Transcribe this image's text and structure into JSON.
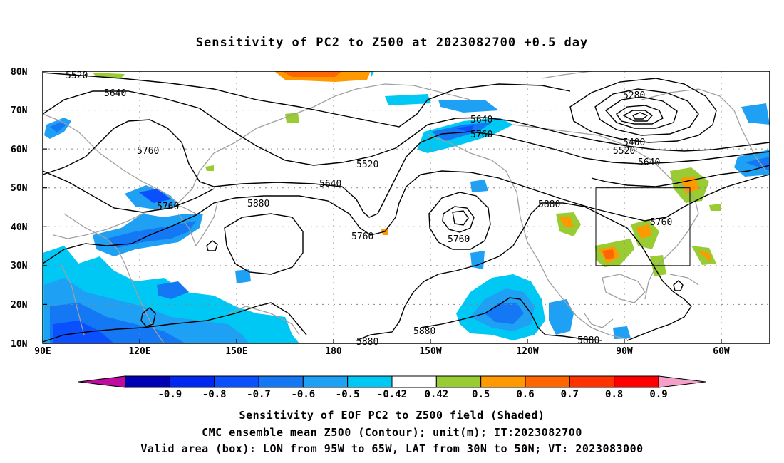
{
  "title": "Sensitivity of PC2 to Z500 at 2023082700 +0.5 day",
  "map": {
    "lat_labels": [
      "80N",
      "70N",
      "60N",
      "50N",
      "40N",
      "30N",
      "20N",
      "10N"
    ],
    "lon_labels": [
      "90E",
      "120E",
      "150E",
      "180",
      "150W",
      "120W",
      "90W",
      "60W"
    ],
    "contour_labels": [
      {
        "text": "5520",
        "id": "c5520a"
      },
      {
        "text": "5640",
        "id": "c5640a"
      },
      {
        "text": "5760",
        "id": "c5760a"
      },
      {
        "text": "5520",
        "id": "c5520b"
      },
      {
        "text": "5640",
        "id": "c5640b"
      },
      {
        "text": "5760",
        "id": "c5760b"
      },
      {
        "text": "5880",
        "id": "c5880a"
      },
      {
        "text": "5760",
        "id": "c5760c"
      },
      {
        "text": "5640",
        "id": "c5640c"
      },
      {
        "text": "5760",
        "id": "c5760d"
      },
      {
        "text": "5760",
        "id": "c5760e"
      },
      {
        "text": "5280",
        "id": "c5280"
      },
      {
        "text": "5400",
        "id": "c5400"
      },
      {
        "text": "5520",
        "id": "c5520c"
      },
      {
        "text": "5640",
        "id": "c5640d"
      },
      {
        "text": "5880",
        "id": "c5880b"
      },
      {
        "text": "5760",
        "id": "c5760f"
      },
      {
        "text": "5880",
        "id": "c5880c"
      },
      {
        "text": "5880",
        "id": "c5880d"
      },
      {
        "text": "5880",
        "id": "c5880e"
      }
    ]
  },
  "colorbar": {
    "labels": [
      "-0.9",
      "-0.8",
      "-0.7",
      "-0.6",
      "-0.5",
      "-0.42",
      "0.42",
      "0.5",
      "0.6",
      "0.7",
      "0.8",
      "0.9"
    ],
    "colors": [
      "#c00aa0",
      "#0000b4",
      "#0028f0",
      "#0a50ff",
      "#1478f5",
      "#1ea0f5",
      "#00c8f5",
      "#ffffff",
      "#99cc33",
      "#ff9900",
      "#ff6600",
      "#ff3300",
      "#ff0000",
      "#f5a0c8"
    ]
  },
  "captions": {
    "line1": "Sensitivity of EOF PC2 to Z500 field (Shaded)",
    "line2": "CMC ensemble mean Z500 (Contour); unit(m); IT:2023082700",
    "line3": "Valid area (box): LON from 95W to 65W, LAT from 30N to 50N; VT: 2023083000"
  }
}
